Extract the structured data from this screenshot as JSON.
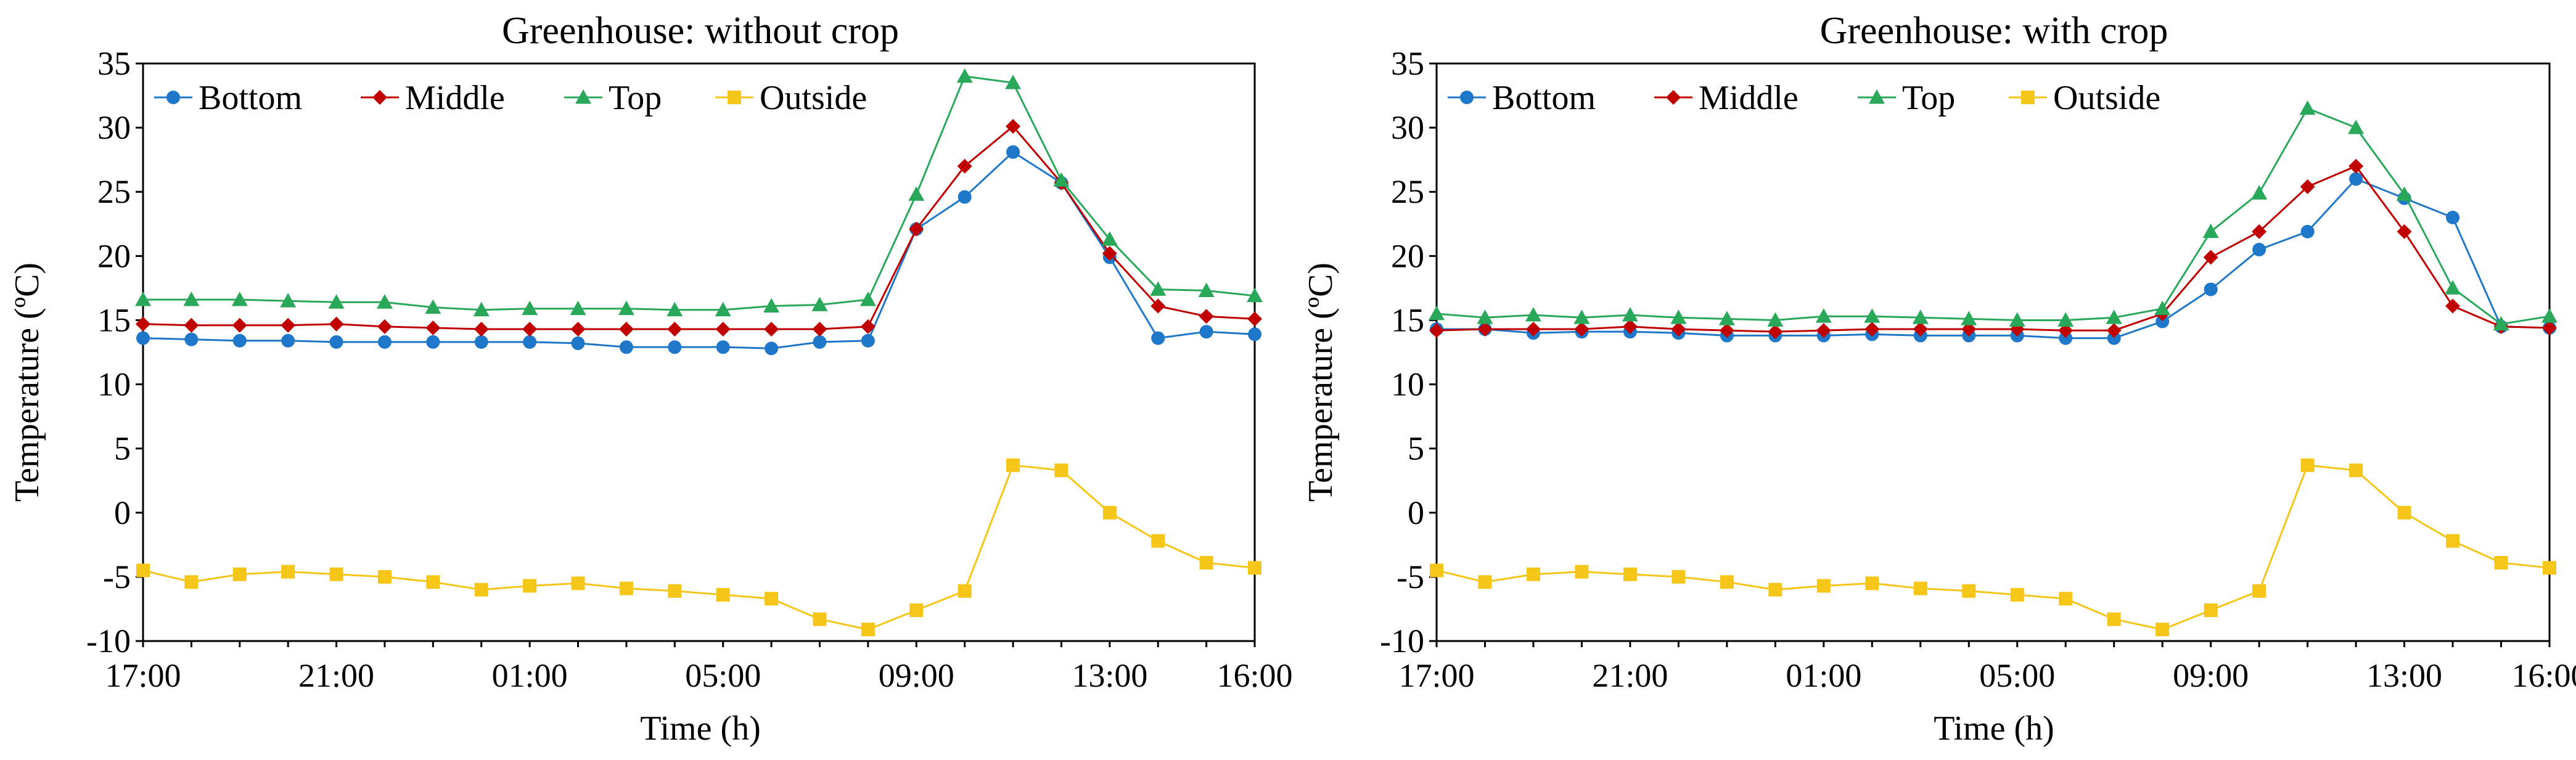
{
  "colors": {
    "Bottom": "#1f77c9",
    "Middle": "#c00000",
    "Top": "#2aa85a",
    "Outside": "#f5c518"
  },
  "chart_data": [
    {
      "type": "line",
      "title": "Greenhouse: without crop",
      "xlabel": "Time (h)",
      "ylabel": "Temperature (ºC)",
      "ylim": [
        -10,
        35
      ],
      "yticks": [
        "-10",
        "-5",
        "0",
        "5",
        "10",
        "15",
        "20",
        "25",
        "30",
        "35"
      ],
      "xticks": [
        "17:00",
        "21:00",
        "01:00",
        "05:00",
        "09:00",
        "13:00",
        "16:00"
      ],
      "xtick_index": [
        0,
        4,
        8,
        12,
        16,
        20,
        23
      ],
      "legend": [
        "Bottom",
        "Middle",
        "Top",
        "Outside"
      ],
      "series": [
        {
          "name": "Bottom",
          "marker": "circle",
          "values": [
            13.6,
            13.5,
            13.4,
            13.4,
            13.3,
            13.3,
            13.3,
            13.3,
            13.3,
            13.2,
            12.9,
            12.9,
            12.9,
            12.8,
            13.3,
            13.4,
            22.1,
            24.6,
            28.1,
            25.7,
            19.9,
            13.6,
            14.1,
            13.9
          ]
        },
        {
          "name": "Middle",
          "marker": "diamond",
          "values": [
            14.7,
            14.6,
            14.6,
            14.6,
            14.7,
            14.5,
            14.4,
            14.3,
            14.3,
            14.3,
            14.3,
            14.3,
            14.3,
            14.3,
            14.3,
            14.5,
            22.1,
            27.0,
            30.1,
            25.7,
            20.2,
            16.1,
            15.3,
            15.1
          ]
        },
        {
          "name": "Top",
          "marker": "triangle",
          "values": [
            16.6,
            16.6,
            16.6,
            16.5,
            16.4,
            16.4,
            16.0,
            15.8,
            15.9,
            15.9,
            15.9,
            15.8,
            15.8,
            16.1,
            16.2,
            16.6,
            24.8,
            34.0,
            33.5,
            25.9,
            21.3,
            17.4,
            17.3,
            16.9
          ]
        },
        {
          "name": "Outside",
          "marker": "square",
          "values": [
            -4.5,
            -5.4,
            -4.8,
            -4.6,
            -4.8,
            -5.0,
            -5.4,
            -6.0,
            -5.7,
            -5.5,
            -5.9,
            -6.1,
            -6.4,
            -6.7,
            -8.3,
            -9.1,
            -7.6,
            -6.1,
            3.7,
            3.3,
            0.0,
            -2.2,
            -3.9,
            -4.3
          ]
        }
      ]
    },
    {
      "type": "line",
      "title": "Greenhouse: with crop",
      "xlabel": "Time (h)",
      "ylabel": "Temperature (ºC)",
      "ylim": [
        -10,
        35
      ],
      "yticks": [
        "-10",
        "-5",
        "0",
        "5",
        "10",
        "15",
        "20",
        "25",
        "30",
        "35"
      ],
      "xticks": [
        "17:00",
        "21:00",
        "01:00",
        "05:00",
        "09:00",
        "13:00",
        "16:00"
      ],
      "xtick_index": [
        0,
        4,
        8,
        12,
        16,
        20,
        23
      ],
      "legend": [
        "Bottom",
        "Middle",
        "Top",
        "Outside"
      ],
      "series": [
        {
          "name": "Bottom",
          "marker": "circle",
          "values": [
            14.3,
            14.3,
            14.0,
            14.1,
            14.1,
            14.0,
            13.8,
            13.8,
            13.8,
            13.9,
            13.8,
            13.8,
            13.8,
            13.6,
            13.6,
            14.9,
            17.4,
            20.5,
            21.9,
            26.0,
            24.5,
            23.0,
            14.5,
            14.4
          ]
        },
        {
          "name": "Middle",
          "marker": "diamond",
          "values": [
            14.2,
            14.3,
            14.3,
            14.3,
            14.5,
            14.3,
            14.2,
            14.1,
            14.2,
            14.3,
            14.3,
            14.3,
            14.3,
            14.2,
            14.2,
            15.5,
            19.9,
            21.9,
            25.4,
            27.0,
            21.9,
            16.1,
            14.5,
            14.4
          ]
        },
        {
          "name": "Top",
          "marker": "triangle",
          "values": [
            15.5,
            15.2,
            15.4,
            15.2,
            15.4,
            15.2,
            15.1,
            15.0,
            15.3,
            15.3,
            15.2,
            15.1,
            15.0,
            15.0,
            15.2,
            15.9,
            21.9,
            24.9,
            31.5,
            30.0,
            24.8,
            17.5,
            14.7,
            15.3
          ]
        },
        {
          "name": "Outside",
          "marker": "square",
          "values": [
            -4.5,
            -5.4,
            -4.8,
            -4.6,
            -4.8,
            -5.0,
            -5.4,
            -6.0,
            -5.7,
            -5.5,
            -5.9,
            -6.1,
            -6.4,
            -6.7,
            -8.3,
            -9.1,
            -7.6,
            -6.1,
            3.7,
            3.3,
            0.0,
            -2.2,
            -3.9,
            -4.3
          ]
        }
      ]
    }
  ]
}
